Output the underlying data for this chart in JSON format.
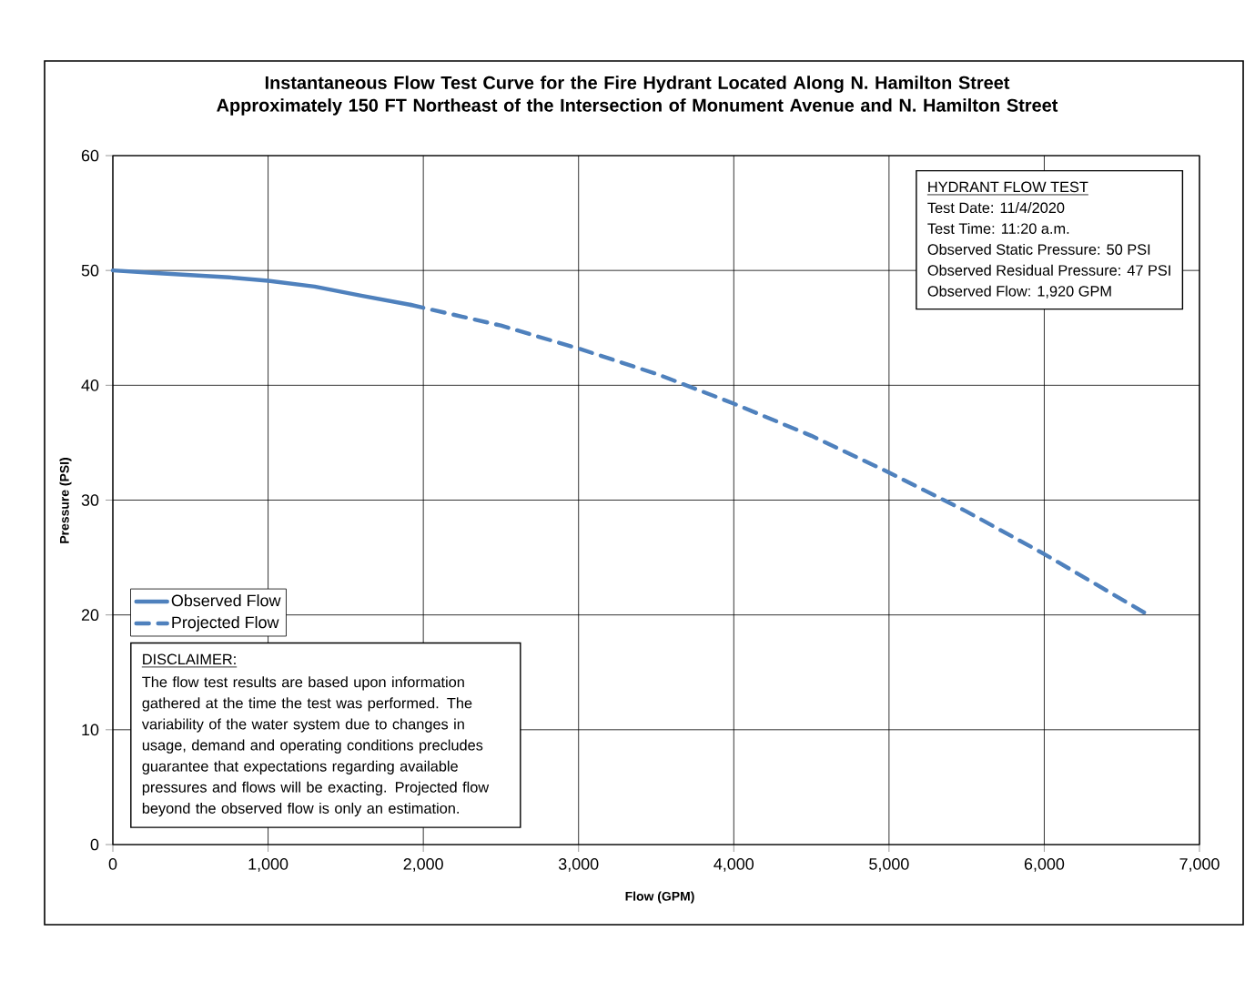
{
  "chart_data": {
    "type": "line",
    "title": "Instantaneous Flow Test Curve for the Fire Hydrant Located Along N. Hamilton Street\nApproximately 150 FT Northeast of the Intersection of Monument Avenue and N. Hamilton Street",
    "xlabel": "Flow (GPM)",
    "ylabel": "Pressure (PSI)",
    "series": [
      {
        "name": "Observed Flow",
        "color": "#4f81bd",
        "line_style": "solid",
        "x": [
          0,
          250,
          500,
          750,
          1000,
          1300,
          1600,
          1920
        ],
        "values": [
          50,
          49.8,
          49.6,
          49.4,
          49.1,
          48.6,
          47.8,
          47.0
        ]
      },
      {
        "name": "Projected Flow",
        "color": "#4f81bd",
        "line_style": "dashed",
        "x": [
          1920,
          2500,
          3000,
          3500,
          4000,
          4500,
          5000,
          5500,
          6000,
          6670
        ],
        "values": [
          47.0,
          45.2,
          43.2,
          41.0,
          38.4,
          35.6,
          32.4,
          29.0,
          25.3,
          20
        ]
      }
    ],
    "xlim": [
      0,
      7000
    ],
    "ylim": [
      0,
      60
    ],
    "xticks": [
      0,
      {
        "value": 1000,
        "label": "1,000"
      },
      {
        "value": 2000,
        "label": "2,000"
      },
      {
        "value": 3000,
        "label": "3,000"
      },
      {
        "value": 4000,
        "label": "4,000"
      },
      {
        "value": 5000,
        "label": "5,000"
      },
      {
        "value": 6000,
        "label": "6,000"
      },
      {
        "value": 7000,
        "label": "7,000"
      }
    ],
    "yticks": [
      0,
      10,
      20,
      30,
      40,
      50,
      60
    ],
    "grid": true,
    "legend": "left",
    "annotations": [
      "HYDRANT FLOW TEST",
      "Test Date: 11/4/2020",
      "Test Time: 11:20 a.m.",
      "Observed Static Pressure: 50 PSI",
      "Observed Residual Pressure: 47 PSI",
      "Observed Flow: 1,920 GPM",
      "DISCLAIMER:",
      "The flow test results are based upon information gathered at the time the test was performed. The variability of the water system due to changes in usage, demand and operating conditions precludes guarantee that expectations regarding available pressures and flows will be exacting. Projected flow beyond the observed flow is only an estimation."
    ]
  }
}
